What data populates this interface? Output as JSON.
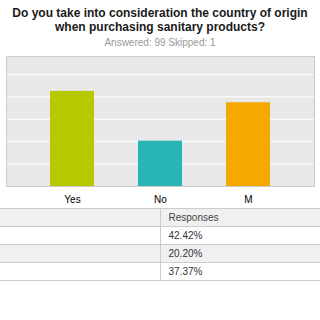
{
  "chart_data": {
    "type": "bar",
    "title": "Do you take into consideration the country of origin when purchasing sanitary products?",
    "subtitle": "Answered: 99    Skipped: 1",
    "categories": [
      "Yes",
      "No",
      "M"
    ],
    "values": [
      42.42,
      20.2,
      37.37
    ],
    "value_labels": [
      "42.42%",
      "20.20%",
      "37.37%"
    ],
    "colors": [
      "#b5c800",
      "#2ab5b5",
      "#f5a800"
    ],
    "ylim": [
      0,
      58
    ],
    "yticks": [
      0,
      10,
      20,
      30,
      40,
      50
    ],
    "grid": true,
    "tick_labels": "x",
    "annotations": [
      "Responses"
    ]
  }
}
